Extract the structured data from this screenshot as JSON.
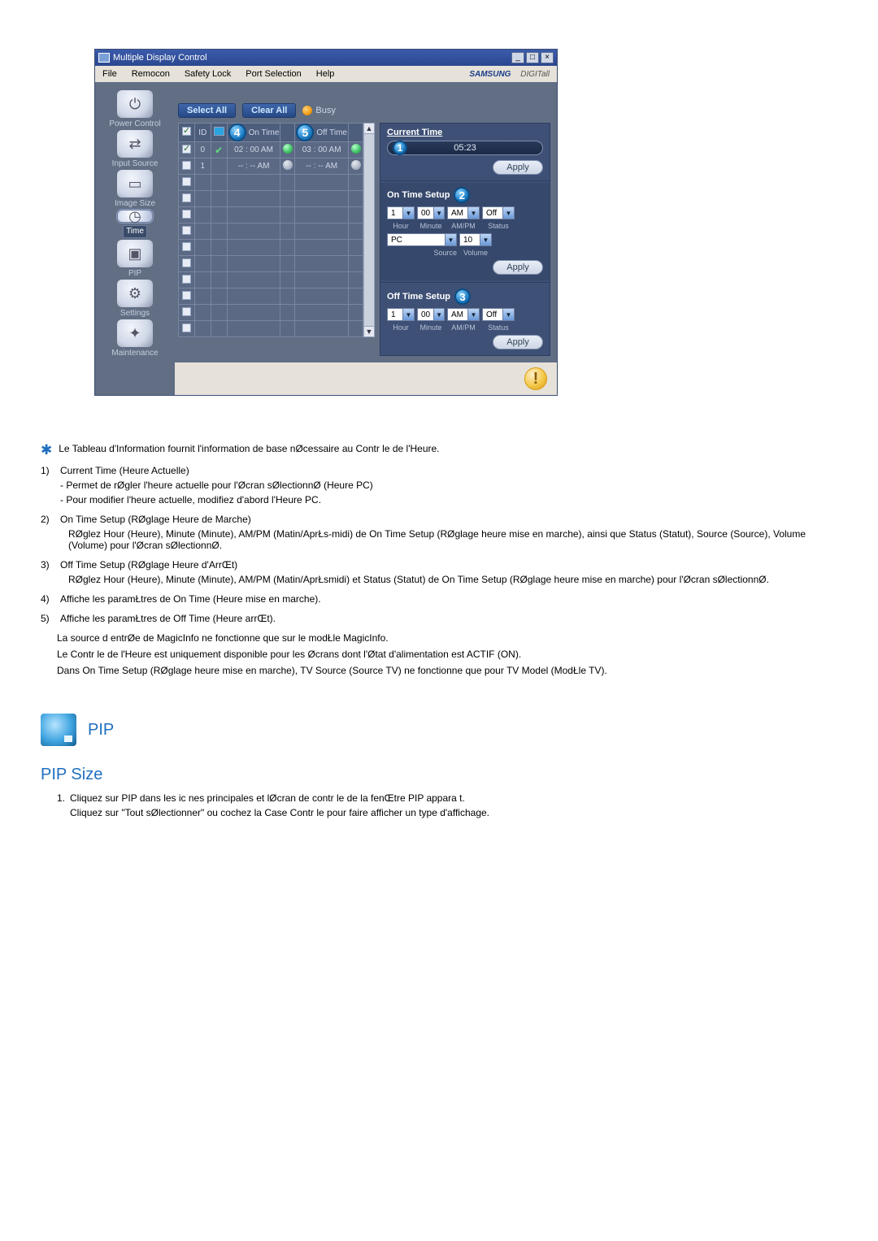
{
  "window": {
    "title": "Multiple Display Control",
    "menu": [
      "File",
      "Remocon",
      "Safety Lock",
      "Port Selection",
      "Help"
    ],
    "brand_main": "SAMSUNG",
    "brand_sub": "DIGITall"
  },
  "sidebar": [
    {
      "label": "Power Control",
      "glyph": "⏻"
    },
    {
      "label": "Input Source",
      "glyph": "⇄"
    },
    {
      "label": "Image Size",
      "glyph": "▭"
    },
    {
      "label": "Time",
      "glyph": "◷",
      "selected": true
    },
    {
      "label": "PIP",
      "glyph": "▣"
    },
    {
      "label": "Settings",
      "glyph": "⚙"
    },
    {
      "label": "Maintenance",
      "glyph": "✦"
    }
  ],
  "toolbar": {
    "select_all": "Select All",
    "clear_all": "Clear All",
    "busy": "Busy"
  },
  "grid": {
    "cols": {
      "id": "ID",
      "on": "On Time",
      "off": "Off Time",
      "on_badge": "4",
      "off_badge": "5"
    },
    "rows": [
      {
        "checked": true,
        "id": "0",
        "tv": true,
        "stat": "green",
        "on": "02 : 00  AM",
        "off": "03 : 00  AM",
        "s2": "green",
        "s3": "green"
      },
      {
        "checked": false,
        "id": "1",
        "tv": false,
        "stat": "green",
        "on": "-- : --  AM",
        "off": "-- : --  AM",
        "s2": "grey",
        "s3": "grey"
      },
      {
        "checked": false
      },
      {
        "checked": false
      },
      {
        "checked": false
      },
      {
        "checked": false
      },
      {
        "checked": false
      },
      {
        "checked": false
      },
      {
        "checked": false
      },
      {
        "checked": false
      },
      {
        "checked": false
      },
      {
        "checked": false
      }
    ]
  },
  "right": {
    "current_time_lbl": "Current Time",
    "current_badge": "1",
    "current_value": "05:23",
    "apply": "Apply",
    "on_setup": {
      "title": "On Time Setup",
      "badge": "2",
      "hour": "1",
      "minute": "00",
      "ampm": "AM",
      "status": "Off",
      "lbl_hour": "Hour",
      "lbl_min": "Minute",
      "lbl_ampm": "AM/PM",
      "lbl_status": "Status",
      "source": "PC",
      "volume": "10",
      "lbl_source": "Source",
      "lbl_volume": "Volume"
    },
    "off_setup": {
      "title": "Off Time Setup",
      "badge": "3",
      "hour": "1",
      "minute": "00",
      "ampm": "AM",
      "status": "Off",
      "lbl_hour": "Hour",
      "lbl_min": "Minute",
      "lbl_ampm": "AM/PM",
      "lbl_status": "Status"
    }
  },
  "doc": {
    "star": "Le Tableau d'Information fournit l'information de base nØcessaire au Contr le de l'Heure.",
    "items": [
      {
        "num": "1)",
        "head": "Current Time (Heure Actuelle)",
        "subs": [
          "Permet de rØgler l'heure actuelle pour l'Øcran sØlectionnØ (Heure PC)",
          "Pour modifier l'heure actuelle, modifiez d'abord l'Heure PC."
        ],
        "dash": true
      },
      {
        "num": "2)",
        "head": "On Time Setup (RØglage Heure de Marche)",
        "subs": [
          "RØglez Hour (Heure), Minute (Minute), AM/PM (Matin/AprŁs-midi) de On Time Setup (RØglage heure mise en marche), ainsi que Status (Statut), Source (Source), Volume (Volume) pour l'Øcran sØlectionnØ."
        ],
        "dash": false
      },
      {
        "num": "3)",
        "head": "Off Time Setup (RØglage Heure d'ArrŒt)",
        "subs": [
          "RØglez Hour (Heure), Minute (Minute), AM/PM (Matin/AprŁsmidi) et Status (Statut) de On Time Setup (RØglage heure mise en marche) pour l'Øcran sØlectionnØ."
        ],
        "dash": false
      },
      {
        "num": "4)",
        "head": "Affiche les paramŁtres de On Time (Heure mise en marche).",
        "subs": []
      },
      {
        "num": "5)",
        "head": "Affiche les paramŁtres de Off Time (Heure arrŒt).",
        "subs": []
      }
    ],
    "notes": [
      "La source d entrØe de MagicInfo ne fonctionne que sur le modŁle MagicInfo.",
      "Le Contr le de l'Heure est uniquement disponible pour les Øcrans dont l'Øtat d'alimentation est ACTIF (ON).",
      "Dans On Time Setup (RØglage heure mise en marche), TV Source (Source TV) ne fonctionne que pour TV Model (ModŁle TV)."
    ],
    "pip_title": "PIP",
    "pip_sub": "PIP Size",
    "pip_step_num": "1.",
    "pip_step1": "Cliquez sur PIP dans les ic nes principales et lØcran de contr le de la fenŒtre PIP appara t.",
    "pip_step2": "Cliquez sur \"Tout sØlectionner\" ou cochez la Case Contr le pour faire afficher un type d'affichage."
  }
}
